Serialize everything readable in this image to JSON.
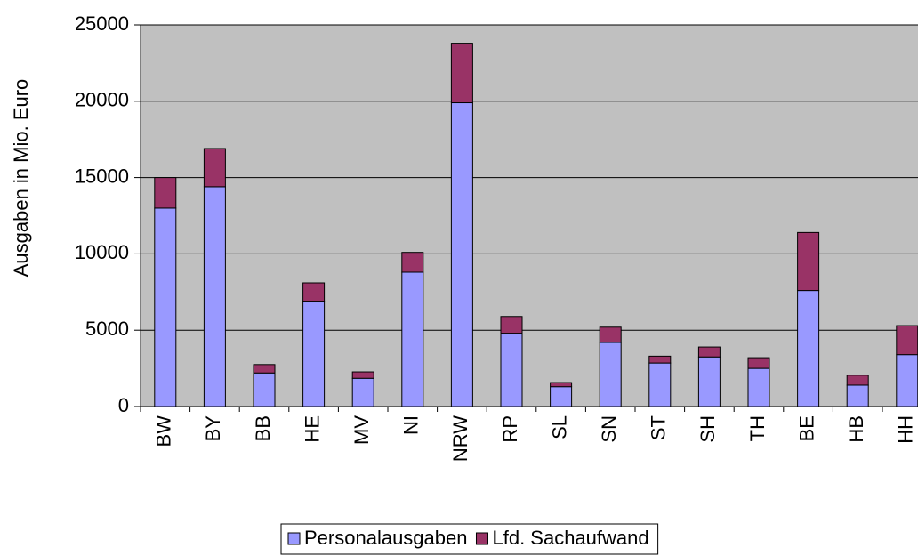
{
  "chart_data": {
    "type": "bar",
    "stacked": true,
    "y_label": "Ausgaben in Mio. Euro",
    "categories": [
      "BW",
      "BY",
      "BB",
      "HE",
      "MV",
      "NI",
      "NRW",
      "RP",
      "SL",
      "SN",
      "ST",
      "SH",
      "TH",
      "BE",
      "HB",
      "HH"
    ],
    "series": [
      {
        "name": "Personalausgaben",
        "color": "#9999ff",
        "values": [
          13000,
          14400,
          2200,
          6900,
          1850,
          8800,
          19900,
          4800,
          1300,
          4200,
          2850,
          3250,
          2500,
          7600,
          1400,
          3400
        ]
      },
      {
        "name": "Lfd. Sachaufwand",
        "color": "#993366",
        "values": [
          2000,
          2500,
          550,
          1200,
          420,
          1300,
          3900,
          1100,
          270,
          1000,
          450,
          650,
          700,
          3800,
          650,
          1900
        ]
      }
    ],
    "ylim": [
      0,
      25000
    ],
    "yticks": [
      0,
      5000,
      10000,
      15000,
      20000,
      25000
    ],
    "grid": true,
    "plot_background": "#c0c0c0",
    "legend": "bottom"
  }
}
